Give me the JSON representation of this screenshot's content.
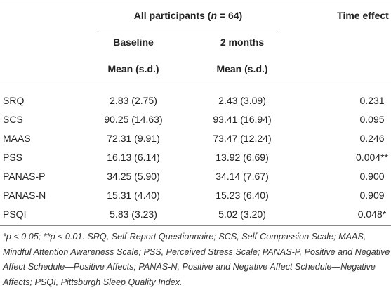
{
  "table": {
    "header": {
      "group": [
        "All participants (",
        "n",
        " = 64)"
      ],
      "time_effect": "Time effect",
      "columns": [
        "Baseline",
        "2 months"
      ],
      "subcolumns": [
        "Mean (s.d.)",
        "Mean (s.d.)"
      ]
    },
    "rows": [
      [
        "SRQ",
        "2.83 (2.75)",
        "2.43 (3.09)",
        "0.231"
      ],
      [
        "SCS",
        "90.25 (14.63)",
        "93.41 (16.94)",
        "0.095"
      ],
      [
        "MAAS",
        "72.31 (9.91)",
        "73.47 (12.24)",
        "0.246"
      ],
      [
        "PSS",
        "16.13 (6.14)",
        "13.92 (6.69)",
        "0.004**"
      ],
      [
        "PANAS-P",
        "34.25 (5.90)",
        "34.14 (7.67)",
        "0.900"
      ],
      [
        "PANAS-N",
        "15.31 (4.40)",
        "15.23 (6.40)",
        "0.909"
      ],
      [
        "PSQI",
        "5.83 (3.23)",
        "5.02 (3.20)",
        "0.048*"
      ]
    ],
    "footnote": "*p < 0.05; **p < 0.01. SRQ, Self-Report Questionnaire; SCS, Self-Compassion Scale; MAAS, Mindful Attention Awareness Scale; PSS, Perceived Stress Scale; PANAS-P, Positive and Negative Affect Schedule—Positive Affects; PANAS-N, Positive and Negative Affect Schedule—Negative Affects; PSQI, Pittsburgh Sleep Quality Index."
  }
}
